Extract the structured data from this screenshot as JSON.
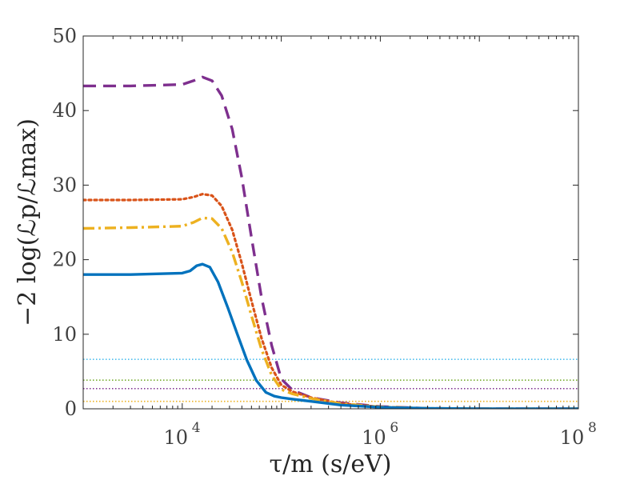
{
  "chart_data": {
    "type": "line",
    "title": "",
    "xlabel": "τ/m (s/eV)",
    "ylabel": "−2 log(ℒp/ℒmax)",
    "xscale": "log",
    "xlim": [
      1000,
      100000000
    ],
    "ylim": [
      0,
      50
    ],
    "grid": false,
    "legend": "none",
    "x_tick_labels": [
      {
        "value": 10000,
        "base": "10",
        "exp": "4"
      },
      {
        "value": 1000000,
        "base": "10",
        "exp": "6"
      },
      {
        "value": 100000000,
        "base": "10",
        "exp": "8"
      }
    ],
    "y_ticks": [
      0,
      10,
      20,
      30,
      40,
      50
    ],
    "series": [
      {
        "style": "dashed",
        "color": "#7E2F8E",
        "x": [
          1000,
          3000,
          10000,
          13000,
          16000,
          20000,
          25000,
          32000,
          40000,
          50000,
          63000,
          80000,
          100000,
          130000,
          200000,
          400000,
          1000000,
          3000000,
          10000000,
          100000000
        ],
        "y": [
          43.3,
          43.3,
          43.5,
          44.0,
          44.5,
          44.0,
          42.0,
          37.5,
          31.0,
          23.0,
          15.0,
          8.5,
          4.0,
          2.5,
          1.5,
          0.8,
          0.3,
          0.05,
          0.0,
          0.0
        ]
      },
      {
        "style": "dotted",
        "color": "#D95319",
        "x": [
          1000,
          3000,
          10000,
          13000,
          16000,
          20000,
          25000,
          32000,
          40000,
          50000,
          63000,
          80000,
          100000,
          130000,
          200000,
          400000,
          1000000,
          3000000,
          10000000,
          100000000
        ],
        "y": [
          28.0,
          28.0,
          28.1,
          28.4,
          28.8,
          28.6,
          27.2,
          24.0,
          19.5,
          14.5,
          9.5,
          5.5,
          3.2,
          2.3,
          1.5,
          0.7,
          0.25,
          0.05,
          0.0,
          0.0
        ]
      },
      {
        "style": "dashdot",
        "color": "#EDB120",
        "x": [
          1000,
          3000,
          10000,
          13000,
          16000,
          20000,
          25000,
          32000,
          40000,
          50000,
          63000,
          80000,
          100000,
          130000,
          200000,
          400000,
          1000000,
          3000000,
          10000000,
          100000000
        ],
        "y": [
          24.2,
          24.3,
          24.5,
          25.0,
          25.6,
          25.5,
          24.2,
          21.0,
          17.0,
          12.5,
          8.0,
          4.5,
          2.6,
          2.0,
          1.4,
          0.7,
          0.25,
          0.05,
          0.0,
          0.0
        ]
      },
      {
        "style": "solid",
        "color": "#0072BD",
        "x": [
          1000,
          3000,
          10000,
          12000,
          14000,
          16000,
          19000,
          23000,
          29000,
          36000,
          45000,
          56000,
          70000,
          85000,
          100000,
          130000,
          200000,
          400000,
          1000000,
          3000000,
          10000000,
          100000000
        ],
        "y": [
          18.0,
          18.0,
          18.2,
          18.5,
          19.2,
          19.4,
          19.0,
          17.0,
          13.5,
          10.0,
          6.5,
          3.8,
          2.2,
          1.7,
          1.5,
          1.3,
          1.0,
          0.5,
          0.2,
          0.05,
          0.0,
          0.0
        ]
      }
    ],
    "threshold_lines": [
      {
        "y": 6.63,
        "color": "#4DBEEE"
      },
      {
        "y": 3.84,
        "color": "#77AC30"
      },
      {
        "y": 2.71,
        "color": "#7E2F8E"
      },
      {
        "y": 1.0,
        "color": "#EDB120"
      }
    ]
  }
}
